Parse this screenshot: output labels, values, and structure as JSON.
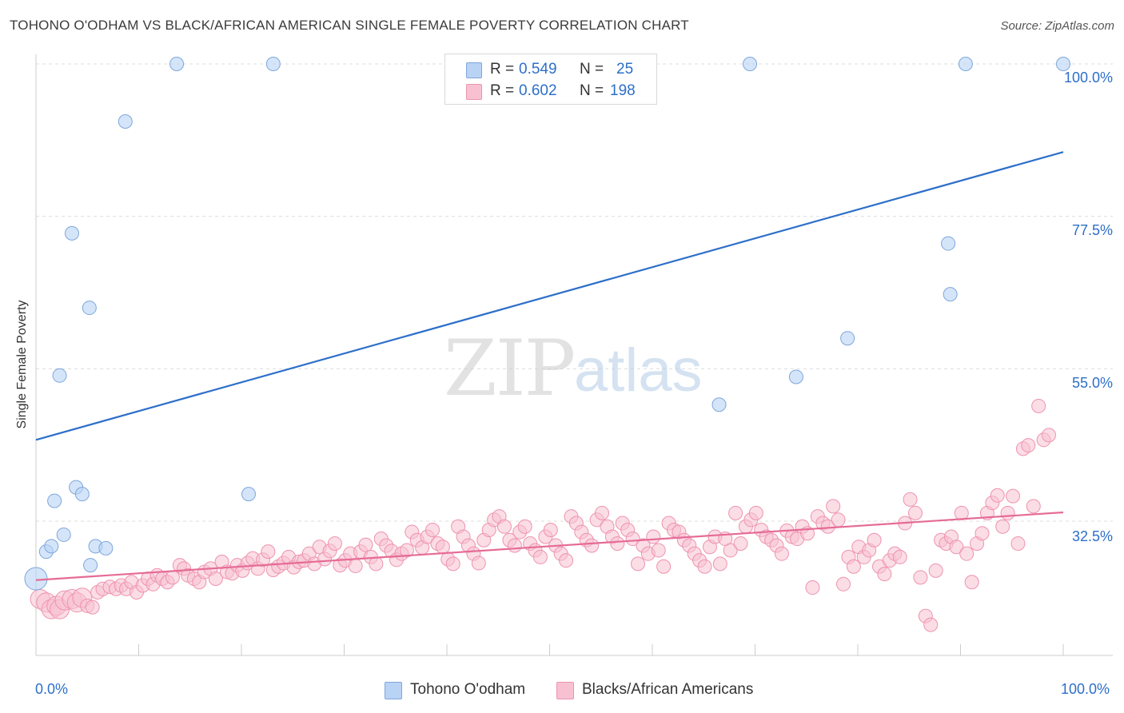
{
  "header": {
    "title": "TOHONO O'ODHAM VS BLACK/AFRICAN AMERICAN SINGLE FEMALE POVERTY CORRELATION CHART",
    "source": "Source: ZipAtlas.com"
  },
  "watermark": {
    "zip": "ZIP",
    "atlas": "atlas"
  },
  "legend": {
    "row1": {
      "r_label": "R = ",
      "r_value": "0.549",
      "n_label": "N = ",
      "n_value": "25"
    },
    "row2": {
      "r_label": "R = ",
      "r_value": "0.602",
      "n_label": "N = ",
      "n_value": "198"
    }
  },
  "colors": {
    "series1_fill": "#b9d3f5",
    "series1_stroke": "#7ea6dc",
    "series1_line": "#2d6fc9",
    "series2_fill": "#f8c1d2",
    "series2_stroke": "#ee93b0",
    "series2_line": "#e56b96",
    "grid": "#dddddd",
    "tick_text": "#2d6fc9"
  },
  "chart_data": {
    "type": "scatter",
    "title": "TOHONO O'ODHAM VS BLACK/AFRICAN AMERICAN SINGLE FEMALE POVERTY CORRELATION CHART",
    "xlabel": "",
    "ylabel": "Single Female Poverty",
    "xlim": [
      0,
      100
    ],
    "ylim": [
      10,
      100
    ],
    "x_tick_labels": [
      "0.0%",
      "100.0%"
    ],
    "y_ticks": [
      32.5,
      55.0,
      77.5,
      100.0
    ],
    "y_tick_labels": [
      "32.5%",
      "55.0%",
      "77.5%",
      "100.0%"
    ],
    "grid": "horizontal dashed",
    "legend_position": "top-center",
    "series": [
      {
        "name": "Tohono O'odham",
        "r": 0.549,
        "n": 25,
        "trend": {
          "x": [
            0,
            100
          ],
          "y": [
            44.5,
            87.0
          ]
        },
        "points": [
          [
            0,
            24
          ],
          [
            1,
            28
          ],
          [
            1.5,
            28.8
          ],
          [
            1.8,
            35.5
          ],
          [
            2.3,
            54
          ],
          [
            2.7,
            30.5
          ],
          [
            3.5,
            75
          ],
          [
            3.9,
            37.5
          ],
          [
            4.5,
            36.5
          ],
          [
            5.2,
            64
          ],
          [
            5.3,
            26
          ],
          [
            5.8,
            28.8
          ],
          [
            6.8,
            28.5
          ],
          [
            8.7,
            91.5
          ],
          [
            13.7,
            100
          ],
          [
            23.1,
            100
          ],
          [
            20.7,
            36.5
          ],
          [
            66.5,
            49.7
          ],
          [
            69.5,
            100
          ],
          [
            74,
            53.8
          ],
          [
            79,
            59.5
          ],
          [
            88.8,
            73.5
          ],
          [
            89,
            66
          ],
          [
            90.5,
            100
          ],
          [
            100,
            100
          ]
        ]
      },
      {
        "name": "Blacks/African Americans",
        "r": 0.602,
        "n": 198,
        "trend": {
          "x": [
            0,
            100
          ],
          "y": [
            23.8,
            33.8
          ]
        },
        "points": [
          [
            0.4,
            21
          ],
          [
            1.0,
            20.5
          ],
          [
            1.5,
            19.5
          ],
          [
            2,
            20
          ],
          [
            2.3,
            19.5
          ],
          [
            2.8,
            20.8
          ],
          [
            3.5,
            21
          ],
          [
            4,
            20.5
          ],
          [
            4.5,
            21.2
          ],
          [
            5,
            20
          ],
          [
            5.5,
            19.8
          ],
          [
            6,
            22
          ],
          [
            6.5,
            22.5
          ],
          [
            7.2,
            22.8
          ],
          [
            7.8,
            22.5
          ],
          [
            8.3,
            23
          ],
          [
            8.8,
            22.5
          ],
          [
            9.3,
            23.5
          ],
          [
            9.8,
            22
          ],
          [
            10.4,
            23
          ],
          [
            10.9,
            24
          ],
          [
            11.4,
            23.2
          ],
          [
            11.8,
            24.5
          ],
          [
            12.3,
            24
          ],
          [
            12.8,
            23.5
          ],
          [
            13.3,
            24.2
          ],
          [
            14,
            26
          ],
          [
            14.4,
            25.5
          ],
          [
            14.8,
            24.5
          ],
          [
            15.4,
            24
          ],
          [
            15.9,
            23.5
          ],
          [
            16.4,
            25
          ],
          [
            17,
            25.5
          ],
          [
            17.5,
            24
          ],
          [
            18.1,
            26.5
          ],
          [
            18.6,
            25
          ],
          [
            19.1,
            24.8
          ],
          [
            19.6,
            26
          ],
          [
            20.1,
            25.2
          ],
          [
            20.6,
            26.3
          ],
          [
            21.1,
            27
          ],
          [
            21.6,
            25.5
          ],
          [
            22.1,
            26.8
          ],
          [
            22.6,
            28
          ],
          [
            23.1,
            25.3
          ],
          [
            23.6,
            25.8
          ],
          [
            24.1,
            26.3
          ],
          [
            24.6,
            27.2
          ],
          [
            25.1,
            25.7
          ],
          [
            25.6,
            26.5
          ],
          [
            26.1,
            26.7
          ],
          [
            26.6,
            27.7
          ],
          [
            27.1,
            26.2
          ],
          [
            27.6,
            28.7
          ],
          [
            28.1,
            26.9
          ],
          [
            28.6,
            28.1
          ],
          [
            29.1,
            29.2
          ],
          [
            29.6,
            26
          ],
          [
            30.1,
            26.7
          ],
          [
            30.6,
            27.7
          ],
          [
            31.1,
            25.9
          ],
          [
            31.6,
            28
          ],
          [
            32.1,
            29
          ],
          [
            32.6,
            27.2
          ],
          [
            33.1,
            26.2
          ],
          [
            33.6,
            29.9
          ],
          [
            34.1,
            28.9
          ],
          [
            34.6,
            28.1
          ],
          [
            35.1,
            26.8
          ],
          [
            35.6,
            27.7
          ],
          [
            36.1,
            28.2
          ],
          [
            36.6,
            30.9
          ],
          [
            37.1,
            29.7
          ],
          [
            37.6,
            28.6
          ],
          [
            38.1,
            30.2
          ],
          [
            38.6,
            31.2
          ],
          [
            39.1,
            29.2
          ],
          [
            39.6,
            28.7
          ],
          [
            40.1,
            26.9
          ],
          [
            40.6,
            26.2
          ],
          [
            41.1,
            31.7
          ],
          [
            41.6,
            30.2
          ],
          [
            42.1,
            28.9
          ],
          [
            42.6,
            27.7
          ],
          [
            43.1,
            26.3
          ],
          [
            43.6,
            29.7
          ],
          [
            44.1,
            31.2
          ],
          [
            44.6,
            32.7
          ],
          [
            45.1,
            33.2
          ],
          [
            45.6,
            31.7
          ],
          [
            46.1,
            29.7
          ],
          [
            46.6,
            28.9
          ],
          [
            47.1,
            30.9
          ],
          [
            47.6,
            31.7
          ],
          [
            48.1,
            29.2
          ],
          [
            48.6,
            28.2
          ],
          [
            49.1,
            27.2
          ],
          [
            49.6,
            30.2
          ],
          [
            50.1,
            31.2
          ],
          [
            50.6,
            28.9
          ],
          [
            51.1,
            27.7
          ],
          [
            51.6,
            26.7
          ],
          [
            52.1,
            33.2
          ],
          [
            52.6,
            32.2
          ],
          [
            53.1,
            30.9
          ],
          [
            53.6,
            29.7
          ],
          [
            54.1,
            28.9
          ],
          [
            54.6,
            32.7
          ],
          [
            55.1,
            33.7
          ],
          [
            55.6,
            31.7
          ],
          [
            56.1,
            30.2
          ],
          [
            56.6,
            29.2
          ],
          [
            57.1,
            32.2
          ],
          [
            57.6,
            31.2
          ],
          [
            58.1,
            29.9
          ],
          [
            58.6,
            26.2
          ],
          [
            59.1,
            28.9
          ],
          [
            59.6,
            27.7
          ],
          [
            60.1,
            30.2
          ],
          [
            60.6,
            28.2
          ],
          [
            61.1,
            25.8
          ],
          [
            61.6,
            32.2
          ],
          [
            62.1,
            31.2
          ],
          [
            62.6,
            30.9
          ],
          [
            63.1,
            29.7
          ],
          [
            63.6,
            28.9
          ],
          [
            64.1,
            27.7
          ],
          [
            64.6,
            26.7
          ],
          [
            65.1,
            25.8
          ],
          [
            65.6,
            28.7
          ],
          [
            66.1,
            30.2
          ],
          [
            66.6,
            26.2
          ],
          [
            67.1,
            29.9
          ],
          [
            67.6,
            28.2
          ],
          [
            68.1,
            33.7
          ],
          [
            68.6,
            29.2
          ],
          [
            69.1,
            31.7
          ],
          [
            69.6,
            32.7
          ],
          [
            70.1,
            33.7
          ],
          [
            70.6,
            31.2
          ],
          [
            71.1,
            30.2
          ],
          [
            71.6,
            29.7
          ],
          [
            72.1,
            28.9
          ],
          [
            72.6,
            27.7
          ],
          [
            73.1,
            31.1
          ],
          [
            73.6,
            30.2
          ],
          [
            74.1,
            29.9
          ],
          [
            74.6,
            31.7
          ],
          [
            75.1,
            30.7
          ],
          [
            75.6,
            22.7
          ],
          [
            76.1,
            33.2
          ],
          [
            76.6,
            32.2
          ],
          [
            77.1,
            31.7
          ],
          [
            77.6,
            34.7
          ],
          [
            78.1,
            32.7
          ],
          [
            78.6,
            23.2
          ],
          [
            79.1,
            27.2
          ],
          [
            79.6,
            25.8
          ],
          [
            80.1,
            28.7
          ],
          [
            80.6,
            27.2
          ],
          [
            81.1,
            28.2
          ],
          [
            81.6,
            29.7
          ],
          [
            82.1,
            25.8
          ],
          [
            82.6,
            24.7
          ],
          [
            83.1,
            26.7
          ],
          [
            83.6,
            27.7
          ],
          [
            84.1,
            27.2
          ],
          [
            84.6,
            32.2
          ],
          [
            85.1,
            35.7
          ],
          [
            85.6,
            33.7
          ],
          [
            86.1,
            24.2
          ],
          [
            86.6,
            18.5
          ],
          [
            87.1,
            17.2
          ],
          [
            87.6,
            25.2
          ],
          [
            88.1,
            29.7
          ],
          [
            88.6,
            29.2
          ],
          [
            89.1,
            30.2
          ],
          [
            89.6,
            28.7
          ],
          [
            90.1,
            33.7
          ],
          [
            90.6,
            27.7
          ],
          [
            91.1,
            23.5
          ],
          [
            91.6,
            29.2
          ],
          [
            92.1,
            30.7
          ],
          [
            92.6,
            33.7
          ],
          [
            93.1,
            35.2
          ],
          [
            93.6,
            36.3
          ],
          [
            94.1,
            31.7
          ],
          [
            94.6,
            33.7
          ],
          [
            95.1,
            36.2
          ],
          [
            95.6,
            29.2
          ],
          [
            96.1,
            43.2
          ],
          [
            96.6,
            43.7
          ],
          [
            97.1,
            34.7
          ],
          [
            97.6,
            49.5
          ],
          [
            98.1,
            44.5
          ],
          [
            98.6,
            45.2
          ]
        ]
      }
    ]
  },
  "bottom_legend": {
    "item1": "Tohono O'odham",
    "item2": "Blacks/African Americans"
  }
}
